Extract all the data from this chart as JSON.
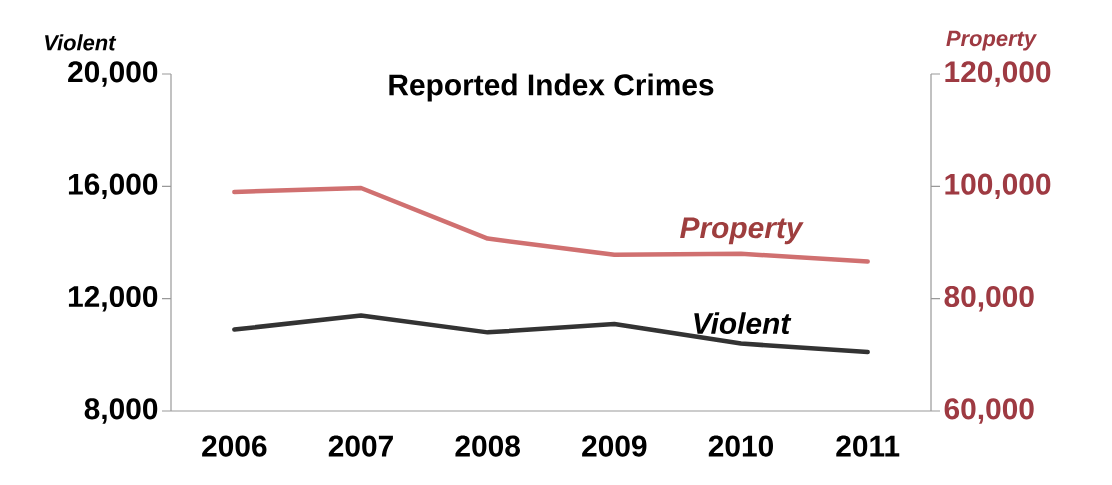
{
  "chart_data": {
    "type": "line",
    "title": "Reported Index Crimes",
    "ylabel": "Violent",
    "y2label": "Property",
    "categories": [
      "2006",
      "2007",
      "2008",
      "2009",
      "2010",
      "2011"
    ],
    "series": [
      {
        "name": "Violent",
        "color": "#333333",
        "values": [
          10900,
          11400,
          10800,
          11100,
          10400,
          10100
        ]
      },
      {
        "name": "Property",
        "color": "#d07070",
        "axis": "y2",
        "values": [
          99000,
          99700,
          90700,
          87800,
          88000,
          86600
        ]
      }
    ],
    "ylim": [
      8000,
      20000
    ],
    "yticks": [
      {
        "value": 8000,
        "label": "8,000"
      },
      {
        "value": 12000,
        "label": "12,000"
      },
      {
        "value": 16000,
        "label": "16,000"
      },
      {
        "value": 20000,
        "label": "20,000"
      }
    ],
    "y2lim": [
      60000,
      120000
    ],
    "y2ticks": [
      {
        "value": 60000,
        "label": "60,000"
      },
      {
        "value": 80000,
        "label": "80,000"
      },
      {
        "value": 100000,
        "label": "100,000"
      },
      {
        "value": 120000,
        "label": "120,000"
      }
    ],
    "grid": false,
    "legend": false,
    "marker": "none",
    "line_style": "solid"
  }
}
